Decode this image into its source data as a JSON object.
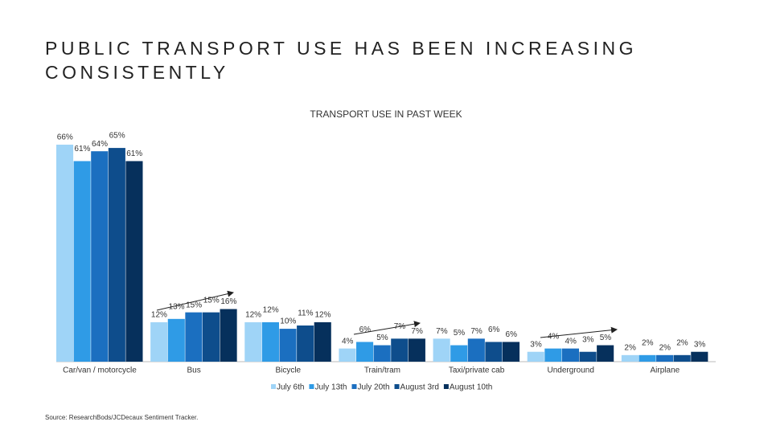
{
  "title": [
    "PUBLIC TRANSPORT USE HAS BEEN INCREASING",
    "CONSISTENTLY"
  ],
  "source": "Source: ResearchBods/JCDecaux Sentiment Tracker.",
  "chart_data": {
    "type": "bar",
    "title": "TRANSPORT USE IN PAST WEEK",
    "categories": [
      "Car/van / motorcycle",
      "Bus",
      "Bicycle",
      "Train/tram",
      "Taxi/private cab",
      "Underground",
      "Airplane"
    ],
    "series": [
      {
        "name": "July 6th",
        "color": "#9fd4f7",
        "values": [
          66,
          12,
          12,
          4,
          7,
          3,
          2
        ],
        "value_labels": [
          "66%",
          "12%",
          "12%",
          "4%",
          "7%",
          "3%",
          "2%"
        ]
      },
      {
        "name": "July 13th",
        "color": "#2f9be6",
        "values": [
          61,
          13,
          12,
          6,
          5,
          4,
          2
        ],
        "value_labels": [
          "61%",
          "13%",
          "12%",
          "6%",
          "5%",
          "4%",
          "2%"
        ]
      },
      {
        "name": "July 20th",
        "color": "#1b6fc0",
        "values": [
          64,
          15,
          10,
          5,
          7,
          4,
          2
        ],
        "value_labels": [
          "64%",
          "15%",
          "10%",
          "5%",
          "7%",
          "4%",
          "2%"
        ]
      },
      {
        "name": "August 3rd",
        "color": "#0e4d8c",
        "values": [
          65,
          15,
          11,
          7,
          6,
          3,
          2
        ],
        "value_labels": [
          "65%",
          "15%",
          "11%",
          "7%",
          "6%",
          "3%",
          "2%"
        ]
      },
      {
        "name": "August 10th",
        "color": "#06305c",
        "values": [
          61,
          16,
          12,
          7,
          6,
          5,
          3
        ],
        "value_labels": [
          "61%",
          "16%",
          "12%",
          "7%",
          "6%",
          "5%",
          "3%"
        ]
      }
    ],
    "legend": "bottom"
  }
}
